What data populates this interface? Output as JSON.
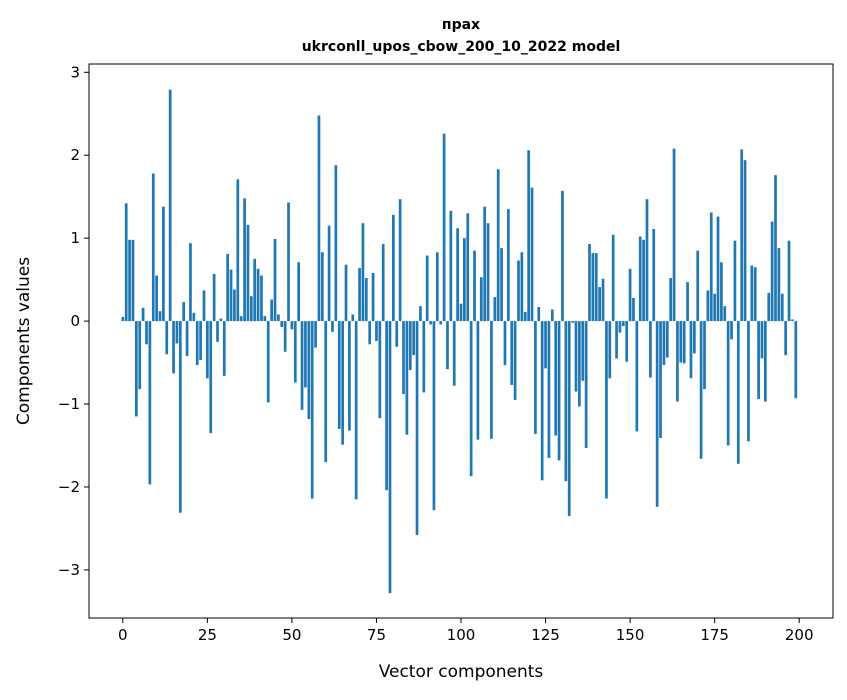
{
  "chart_data": {
    "type": "bar",
    "title": "прах",
    "subtitle": "ukrconll_upos_cbow_200_10_2022 model",
    "xlabel": "Vector components",
    "ylabel": "Components values",
    "xlim": [
      -10,
      210
    ],
    "ylim": [
      -3.58,
      3.1
    ],
    "xticks": [
      0,
      25,
      50,
      75,
      100,
      125,
      150,
      175,
      200
    ],
    "xtick_labels": [
      "0",
      "25",
      "50",
      "75",
      "100",
      "125",
      "150",
      "175",
      "200"
    ],
    "yticks": [
      -3,
      -2,
      -1,
      0,
      1,
      2,
      3
    ],
    "ytick_labels": [
      "−3",
      "−2",
      "−1",
      "0",
      "1",
      "2",
      "3"
    ],
    "grid": false,
    "bar_color": "#1f77b4",
    "values": [
      0.05,
      1.42,
      0.98,
      0.98,
      -1.15,
      -0.82,
      0.16,
      -0.28,
      -1.97,
      1.78,
      0.55,
      0.12,
      1.38,
      -0.4,
      2.79,
      -0.63,
      -0.27,
      -2.31,
      0.23,
      -0.42,
      0.94,
      0.1,
      -0.53,
      -0.47,
      0.37,
      -0.69,
      -1.35,
      0.57,
      -0.25,
      0.03,
      -0.66,
      0.81,
      0.62,
      0.38,
      1.71,
      0.06,
      1.48,
      1.16,
      0.3,
      0.75,
      0.63,
      0.55,
      0.06,
      -0.98,
      0.26,
      0.99,
      0.08,
      -0.07,
      -0.37,
      1.43,
      -0.1,
      -0.74,
      0.71,
      -1.07,
      -0.8,
      -1.18,
      -2.14,
      -0.32,
      2.48,
      0.83,
      -1.7,
      1.15,
      -0.13,
      1.88,
      -1.3,
      -1.49,
      0.68,
      -1.32,
      0.08,
      -2.15,
      0.64,
      1.18,
      0.52,
      -0.28,
      0.58,
      -0.24,
      -1.17,
      0.93,
      -2.04,
      -3.28,
      1.28,
      -0.31,
      1.47,
      -0.88,
      -1.37,
      -0.59,
      -0.41,
      -2.58,
      0.18,
      -0.86,
      0.79,
      -0.04,
      -2.28,
      0.83,
      -0.04,
      2.26,
      -0.58,
      1.33,
      -0.78,
      1.12,
      0.21,
      1.0,
      1.3,
      -1.87,
      0.85,
      -1.43,
      0.53,
      1.38,
      1.18,
      -1.42,
      0.29,
      1.83,
      0.88,
      -0.53,
      1.35,
      -0.77,
      -0.95,
      0.73,
      0.83,
      0.11,
      2.06,
      1.61,
      -1.36,
      0.17,
      -1.92,
      -0.57,
      -1.65,
      0.14,
      -1.38,
      -1.68,
      1.57,
      -1.93,
      -2.35,
      -0.02,
      -0.85,
      -1.03,
      -0.72,
      -1.53,
      0.93,
      0.82,
      0.82,
      0.41,
      0.51,
      -2.14,
      -0.69,
      1.04,
      -0.45,
      -0.14,
      -0.06,
      -0.49,
      0.63,
      0.28,
      -1.33,
      1.02,
      0.98,
      1.47,
      -0.68,
      1.11,
      -2.24,
      -1.41,
      -0.53,
      -0.44,
      0.52,
      2.08,
      -0.97,
      -0.5,
      -0.51,
      0.47,
      -0.69,
      -0.39,
      0.85,
      -1.66,
      -0.82,
      0.37,
      1.31,
      0.33,
      1.26,
      0.71,
      0.18,
      -1.5,
      -0.22,
      0.97,
      -1.72,
      2.07,
      1.94,
      -1.45,
      0.67,
      0.65,
      -0.94,
      -0.45,
      -0.97,
      0.34,
      1.2,
      1.76,
      0.88,
      0.33,
      -0.41,
      0.97,
      0.02,
      -0.93
    ]
  }
}
